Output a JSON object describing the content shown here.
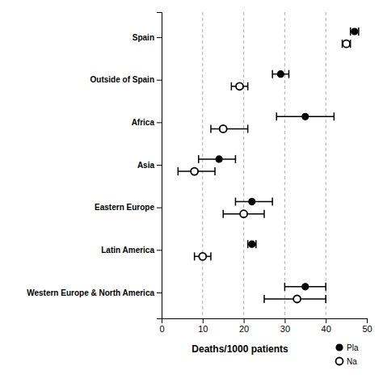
{
  "chart_data": {
    "type": "dot",
    "orientation": "horizontal",
    "categories": [
      "Western Europe & North America",
      "Latin America",
      "Eastern Europe",
      "Asia",
      "Africa",
      "Outside of Spain",
      "Spain"
    ],
    "series": [
      {
        "name": "Pla",
        "color": "black",
        "marker": "filled-circle",
        "values": [
          35,
          22,
          22,
          14,
          35,
          29,
          47
        ],
        "ci_low": [
          30,
          21,
          18,
          9,
          28,
          27,
          46
        ],
        "ci_high": [
          40,
          23,
          27,
          18,
          42,
          31,
          48
        ]
      },
      {
        "name": "Na",
        "color": "black",
        "marker": "open-circle",
        "values": [
          33,
          10,
          20,
          8,
          15,
          19,
          45
        ],
        "ci_low": [
          25,
          8,
          15,
          4,
          12,
          17,
          44
        ],
        "ci_high": [
          40,
          12,
          25,
          13,
          21,
          21,
          46
        ]
      }
    ],
    "xlabel": "Deaths/1000 patients",
    "xlim": [
      0,
      50
    ],
    "xticks": [
      0,
      10,
      20,
      30,
      40,
      50
    ],
    "grid": true,
    "legend": "lower right"
  }
}
